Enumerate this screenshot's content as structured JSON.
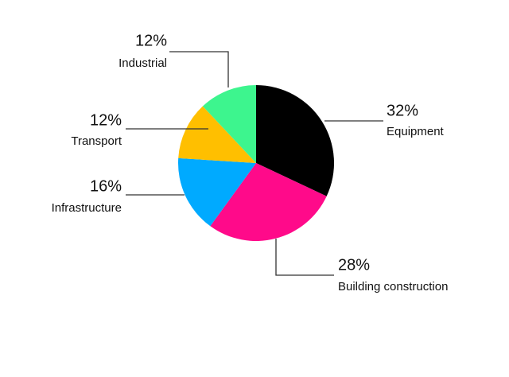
{
  "chart_data": {
    "type": "pie",
    "categories": [
      "Equipment",
      "Building construction",
      "Infrastructure",
      "Transport",
      "Industrial"
    ],
    "values": [
      32,
      28,
      16,
      12,
      12
    ],
    "value_labels": [
      "32%",
      "28%",
      "16%",
      "12%",
      "12%"
    ],
    "colors": [
      "#000000",
      "#ff0a8a",
      "#00aaff",
      "#ffbf00",
      "#3df58e"
    ]
  }
}
